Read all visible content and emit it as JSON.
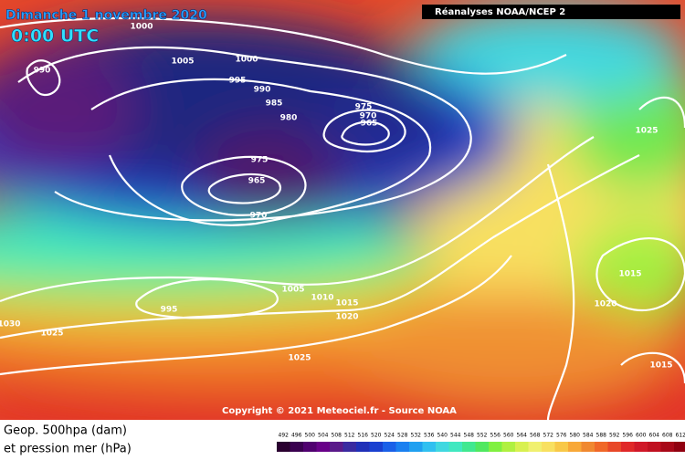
{
  "header": {
    "date": "Dimanche 1 novembre 2020",
    "time": "0:00 UTC",
    "source": "Réanalyses NOAA/NCEP 2"
  },
  "copyright": "Copyright © 2021 Meteociel.fr - Source NOAA",
  "legend": {
    "line1": "Geop. 500hpa (dam)",
    "line2": "et pression mer (hPa)",
    "scale": [
      492,
      496,
      500,
      504,
      508,
      512,
      516,
      520,
      524,
      528,
      532,
      536,
      540,
      544,
      548,
      552,
      556,
      560,
      564,
      568,
      572,
      576,
      580,
      584,
      588,
      592,
      596,
      600,
      604,
      608,
      612
    ],
    "scale_colors": [
      "#2a0030",
      "#3a0050",
      "#500070",
      "#680088",
      "#5a1a8a",
      "#3a2aa0",
      "#2030b8",
      "#1a40d0",
      "#1a60e8",
      "#1a80f0",
      "#20a0f0",
      "#30c0f0",
      "#40d8e0",
      "#40e8c0",
      "#40e890",
      "#50e860",
      "#80f040",
      "#b0f040",
      "#d8f050",
      "#f0f070",
      "#f8e060",
      "#f8c848",
      "#f8a838",
      "#f08830",
      "#f06828",
      "#e84828",
      "#e02828",
      "#d01828",
      "#c01020",
      "#a80818",
      "#900010"
    ]
  },
  "isobar_labels": [
    "1000",
    "1005",
    "1000",
    "995",
    "990",
    "985",
    "980",
    "975",
    "970",
    "965",
    "990",
    "975",
    "965",
    "970",
    "1025",
    "1005",
    "1010",
    "1015",
    "995",
    "1020",
    "1025",
    "1030",
    "1015",
    "1020",
    "1025",
    "1015"
  ]
}
